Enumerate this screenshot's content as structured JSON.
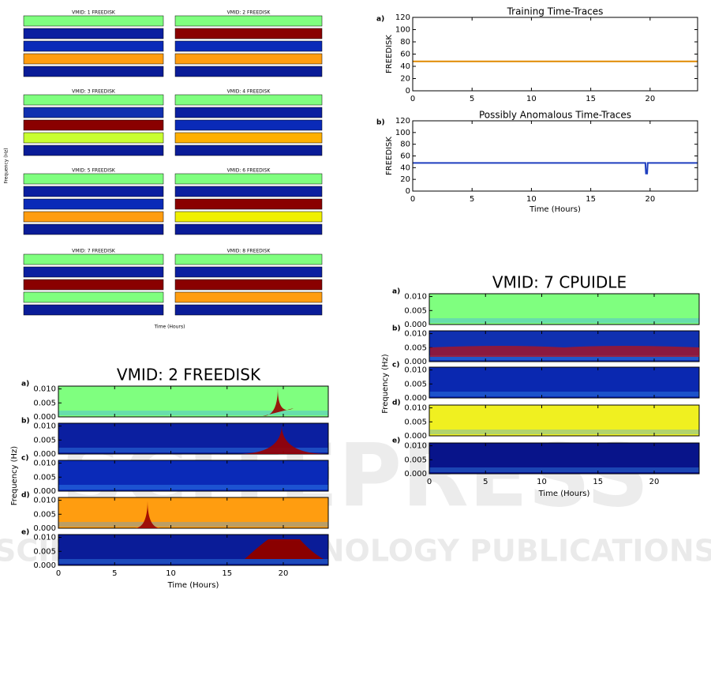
{
  "chart_data": [
    {
      "type": "line",
      "panel_label": "a)",
      "title": "Training Time-Traces",
      "ylabel": "FREEDISK",
      "x": [
        0,
        24
      ],
      "values": [
        48,
        48
      ],
      "color": "#e08a00",
      "xlim": [
        0,
        24
      ],
      "xticks": [
        0,
        5,
        10,
        15,
        20
      ],
      "ylim": [
        0,
        120
      ],
      "yticks": [
        0,
        20,
        40,
        60,
        80,
        100,
        120
      ]
    },
    {
      "type": "line",
      "panel_label": "b)",
      "title": "Possibly Anomalous Time-Traces",
      "ylabel": "FREEDISK",
      "xlabel": "Time (Hours)",
      "x": [
        0,
        19.6,
        19.65,
        19.75,
        19.8,
        24
      ],
      "values": [
        48,
        48,
        30,
        30,
        48,
        48
      ],
      "color": "#1f3fbf",
      "xlim": [
        0,
        24
      ],
      "xticks": [
        0,
        5,
        10,
        15,
        20
      ],
      "ylim": [
        0,
        120
      ],
      "yticks": [
        0,
        20,
        40,
        60,
        80,
        100,
        120
      ]
    },
    {
      "type": "spectrogram",
      "title": "VMID: 2 FREEDISK",
      "xlabel": "Time (Hours)",
      "ylabel": "Frequency (Hz)",
      "xlim": [
        0,
        24
      ],
      "xticks": [
        0,
        5,
        10,
        15,
        20
      ],
      "ylim": [
        0,
        0.011
      ],
      "yticks": [
        {
          "value": 0,
          "label": "0.000"
        },
        {
          "value": 0.005,
          "label": "0.005"
        },
        {
          "value": 0.01,
          "label": "0.010"
        }
      ],
      "panels": [
        {
          "label": "a)",
          "color": "#7fff7f"
        },
        {
          "label": "b)",
          "color": "#0b1fa0"
        },
        {
          "label": "c)",
          "color": "#0a2ab8"
        },
        {
          "label": "d)",
          "color": "#ff9d10"
        },
        {
          "label": "e)",
          "color": "#0a1c98"
        }
      ]
    },
    {
      "type": "spectrogram",
      "title": "VMID: 7 CPUIDLE",
      "xlabel": "Time (Hours)",
      "ylabel": "Frequency (Hz)",
      "xlim": [
        0,
        24
      ],
      "xticks": [
        0,
        5,
        10,
        15,
        20
      ],
      "ylim": [
        0,
        0.011
      ],
      "yticks": [
        {
          "value": 0,
          "label": "0.000"
        },
        {
          "value": 0.005,
          "label": "0.005"
        },
        {
          "value": 0.01,
          "label": "0.010"
        }
      ],
      "panels": [
        {
          "label": "a)",
          "color": "#7fff7f"
        },
        {
          "label": "b)",
          "color": "#1030b0"
        },
        {
          "label": "c)",
          "color": "#0a28b0"
        },
        {
          "label": "d)",
          "color": "#f0f020"
        },
        {
          "label": "e)",
          "color": "#08148a"
        }
      ]
    }
  ],
  "thumbnails": {
    "ylabel": "Frequency (Hz)",
    "xlabel": "Time (Hours)",
    "items": [
      {
        "title": "VMID: 1 FREEDISK",
        "strips": [
          "#7fff7f",
          "#0b1fa0",
          "#0a2ab8",
          "#ff9d10",
          "#0a1c98"
        ]
      },
      {
        "title": "VMID: 2 FREEDISK",
        "strips": [
          "#7fff7f",
          "#8a0000",
          "#0a2ab8",
          "#ff9d10",
          "#0a1c98"
        ]
      },
      {
        "title": "VMID: 3 FREEDISK",
        "strips": [
          "#7fff7f",
          "#1030b0",
          "#8a0000",
          "#c8ff30",
          "#0a1c98"
        ]
      },
      {
        "title": "VMID: 4 FREEDISK",
        "strips": [
          "#7fff7f",
          "#0b1fa0",
          "#0a2ab8",
          "#ffb000",
          "#0a1c98"
        ]
      },
      {
        "title": "VMID: 5 FREEDISK",
        "strips": [
          "#7fff7f",
          "#0b1fa0",
          "#0a2ab8",
          "#ff9d10",
          "#0a1c98"
        ]
      },
      {
        "title": "VMID: 6 FREEDISK",
        "strips": [
          "#7fff7f",
          "#0b1fa0",
          "#8a0000",
          "#f0f000",
          "#0a1c98"
        ]
      },
      {
        "title": "VMID: 7 FREEDISK",
        "strips": [
          "#7fff7f",
          "#0b1fa0",
          "#8a0000",
          "#7fff7f",
          "#0a1c98"
        ]
      },
      {
        "title": "VMID: 8 FREEDISK",
        "strips": [
          "#7fff7f",
          "#0b1fa0",
          "#8a0000",
          "#ff9d10",
          "#0a1c98"
        ]
      }
    ]
  },
  "watermark": {
    "logo": "SCITEPRESS",
    "tagline": "SCIENCE AND TECHNOLOGY PUBLICATIONS"
  }
}
